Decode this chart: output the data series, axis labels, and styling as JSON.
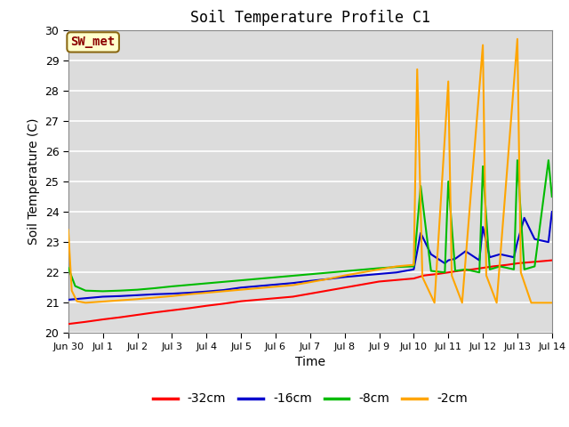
{
  "title": "Soil Temperature Profile C1",
  "xlabel": "Time",
  "ylabel": "Soil Temperature (C)",
  "ylim": [
    20.0,
    30.0
  ],
  "yticks": [
    20.0,
    21.0,
    22.0,
    23.0,
    24.0,
    25.0,
    26.0,
    27.0,
    28.0,
    29.0,
    30.0
  ],
  "annotation_text": "SW_met",
  "annotation_color": "#8B0000",
  "annotation_bg": "#FFFFCC",
  "annotation_border": "#8B6914",
  "background_color": "#DCDCDC",
  "grid_color": "#FFFFFF",
  "series": {
    "-32cm": {
      "color": "#FF0000",
      "x": [
        0,
        0.5,
        1,
        1.5,
        2,
        2.5,
        3,
        3.5,
        4,
        4.5,
        5,
        5.5,
        6,
        6.5,
        7,
        7.5,
        8,
        8.5,
        9,
        9.5,
        9.8,
        10,
        10.3,
        10.7,
        11,
        11.3,
        11.7,
        12,
        12.3,
        12.7,
        13,
        13.5,
        14
      ],
      "y": [
        20.3,
        20.37,
        20.45,
        20.52,
        20.6,
        20.68,
        20.75,
        20.82,
        20.9,
        20.97,
        21.05,
        21.1,
        21.15,
        21.2,
        21.3,
        21.4,
        21.5,
        21.6,
        21.7,
        21.75,
        21.78,
        21.8,
        21.9,
        21.95,
        22.0,
        22.05,
        22.1,
        22.15,
        22.2,
        22.25,
        22.3,
        22.35,
        22.4
      ]
    },
    "-16cm": {
      "color": "#0000CD",
      "x": [
        0,
        0.5,
        1,
        1.5,
        2,
        2.5,
        3,
        3.5,
        4,
        4.5,
        5,
        5.5,
        6,
        6.5,
        7,
        7.5,
        8,
        8.5,
        9,
        9.5,
        10,
        10.2,
        10.5,
        10.9,
        11,
        11.2,
        11.5,
        11.9,
        12,
        12.2,
        12.5,
        12.9,
        13,
        13.2,
        13.5,
        13.9,
        14
      ],
      "y": [
        21.1,
        21.15,
        21.2,
        21.22,
        21.25,
        21.28,
        21.3,
        21.33,
        21.37,
        21.42,
        21.5,
        21.55,
        21.6,
        21.65,
        21.72,
        21.78,
        21.85,
        21.9,
        21.95,
        22.0,
        22.1,
        23.3,
        22.6,
        22.3,
        22.4,
        22.45,
        22.7,
        22.4,
        23.5,
        22.5,
        22.6,
        22.5,
        23.0,
        23.8,
        23.1,
        23.0,
        24.0
      ]
    },
    "-8cm": {
      "color": "#00BB00",
      "x": [
        0,
        0.2,
        0.5,
        1,
        1.5,
        2,
        2.5,
        3,
        3.5,
        4,
        4.5,
        5,
        5.5,
        6,
        6.5,
        7,
        7.5,
        8,
        8.5,
        9,
        9.5,
        10,
        10.2,
        10.5,
        10.9,
        11,
        11.2,
        11.5,
        11.9,
        12,
        12.2,
        12.5,
        12.9,
        13,
        13.2,
        13.5,
        13.9,
        14
      ],
      "y": [
        22.15,
        21.55,
        21.4,
        21.38,
        21.4,
        21.43,
        21.48,
        21.54,
        21.59,
        21.64,
        21.69,
        21.74,
        21.79,
        21.84,
        21.89,
        21.94,
        21.99,
        22.04,
        22.09,
        22.14,
        22.18,
        22.2,
        24.85,
        22.05,
        22.0,
        25.0,
        22.05,
        22.1,
        22.0,
        25.5,
        22.1,
        22.2,
        22.1,
        25.7,
        22.1,
        22.2,
        25.7,
        24.5
      ]
    },
    "-2cm": {
      "color": "#FFA500",
      "x": [
        0,
        0.1,
        0.25,
        0.5,
        1,
        1.5,
        2,
        2.5,
        3,
        3.5,
        4,
        4.5,
        5,
        5.5,
        6,
        6.5,
        7,
        7.5,
        8,
        8.5,
        9,
        9.5,
        10,
        10.1,
        10.25,
        10.6,
        11,
        11.1,
        11.4,
        12,
        12.1,
        12.4,
        13,
        13.1,
        13.4,
        14
      ],
      "y": [
        23.4,
        21.4,
        21.05,
        21.0,
        21.04,
        21.08,
        21.12,
        21.17,
        21.22,
        21.28,
        21.33,
        21.38,
        21.43,
        21.48,
        21.53,
        21.58,
        21.68,
        21.78,
        21.9,
        22.0,
        22.1,
        22.2,
        22.25,
        28.7,
        21.85,
        21.0,
        28.3,
        21.9,
        21.0,
        29.5,
        21.9,
        21.0,
        29.7,
        22.0,
        21.0,
        21.0
      ]
    }
  },
  "xtick_positions": [
    0,
    1,
    2,
    3,
    4,
    5,
    6,
    7,
    8,
    9,
    10,
    11,
    12,
    13,
    14
  ],
  "xtick_labels": [
    "Jun 30",
    "Jul 1",
    "Jul 2",
    "Jul 3",
    "Jul 4",
    "Jul 5",
    "Jul 6",
    "Jul 7",
    "Jul 8",
    "Jul 9",
    "Jul 10",
    "Jul 11",
    "Jul 12",
    "Jul 13",
    "Jul 14"
  ],
  "legend": [
    {
      "label": "-32cm",
      "color": "#FF0000"
    },
    {
      "label": "-16cm",
      "color": "#0000CD"
    },
    {
      "label": "-8cm",
      "color": "#00BB00"
    },
    {
      "label": "-2cm",
      "color": "#FFA500"
    }
  ]
}
